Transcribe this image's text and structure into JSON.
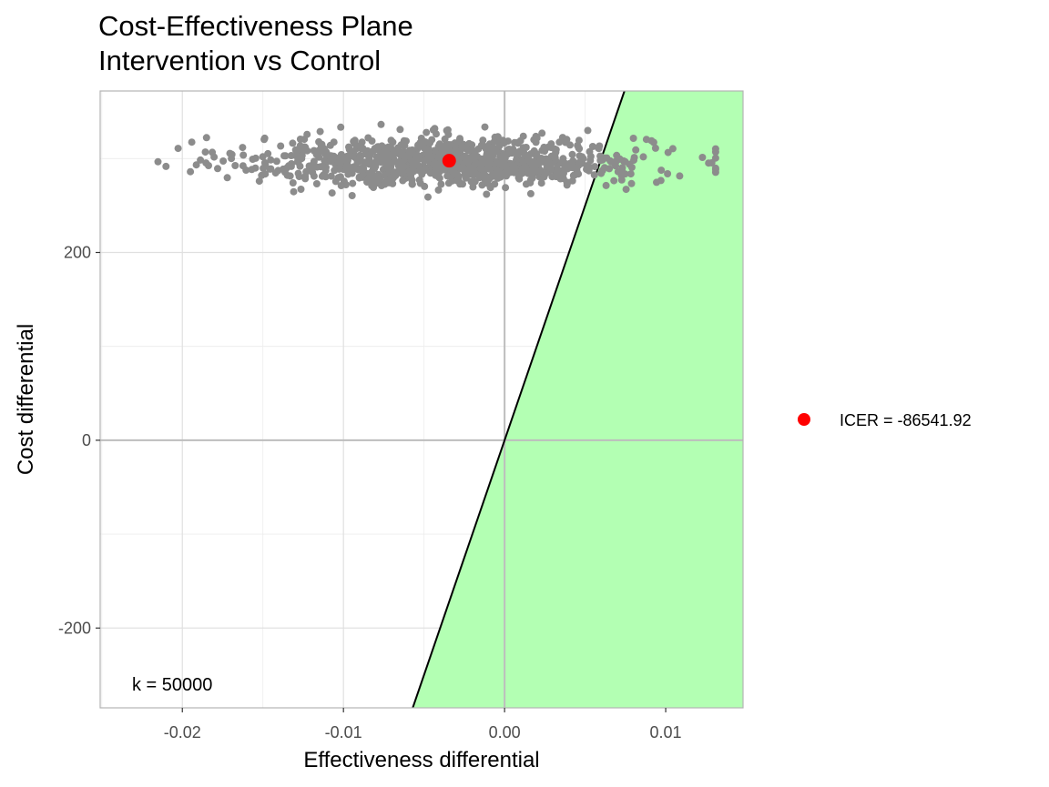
{
  "title": "Cost-Effectiveness Plane",
  "subtitle": "Intervention vs Control",
  "chart_data": {
    "type": "scatter",
    "title": "Cost-Effectiveness Plane",
    "subtitle": "Intervention vs Control",
    "xlabel": "Effectiveness differential",
    "ylabel": "Cost differential",
    "xlim": [
      -0.0251,
      0.0148
    ],
    "ylim": [
      -285,
      372
    ],
    "x_ticks": [
      -0.02,
      -0.01,
      0.0,
      0.01
    ],
    "x_tick_labels": [
      "-0.02",
      "-0.01",
      "0.00",
      "0.01"
    ],
    "y_ticks": [
      -200,
      0,
      200
    ],
    "y_tick_labels": [
      "-200",
      "0",
      "200"
    ],
    "grid": true,
    "willingness_to_pay": 50000,
    "wtp_line": {
      "slope": 50000,
      "intercept": 0,
      "color": "#000000"
    },
    "acceptability_region_color": "#b3ffb3",
    "point_cloud": {
      "color": "#8c8c8c",
      "n_points": 1000,
      "x_mean": -0.0035,
      "x_sd": 0.0062,
      "x_range": [
        -0.0237,
        0.0131
      ],
      "y_mean": 297,
      "y_sd": 13,
      "y_range": [
        259,
        340
      ]
    },
    "series": [
      {
        "name": "ICER = -86541.92",
        "x": [
          -0.00344
        ],
        "y": [
          297.7
        ],
        "color": "#ff0000"
      }
    ],
    "annotation": "k = 50000",
    "legend_position": "right"
  }
}
